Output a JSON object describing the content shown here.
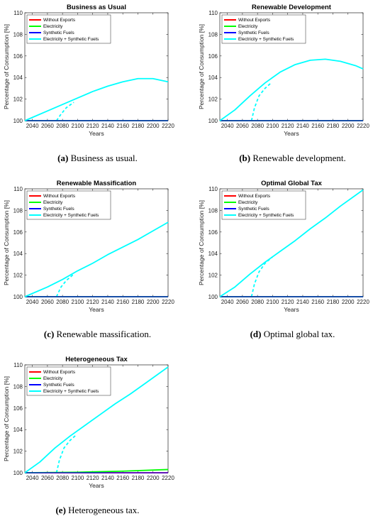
{
  "series_styles": {
    "Without Exports": "#ff0000",
    "Electricity": "#00ff00",
    "Synthetic Fuels": "#0000ff",
    "Electricity + Synthetic Fuels": "#00ffff"
  },
  "captions": [
    {
      "letter": "(a)",
      "text": " Business as usual."
    },
    {
      "letter": "(b)",
      "text": " Renewable development."
    },
    {
      "letter": "(c)",
      "text": " Renewable massification."
    },
    {
      "letter": "(d)",
      "text": " Optimal global tax."
    },
    {
      "letter": "(e)",
      "text": " Heterogeneous tax."
    }
  ],
  "chart_data": [
    {
      "type": "line",
      "title": "Business as Usual",
      "xlabel": "Years",
      "ylabel": "Percentage of Consumption [%]",
      "xlim": [
        2030,
        2220
      ],
      "ylim": [
        100,
        110
      ],
      "xticks": [
        2040,
        2060,
        2080,
        2100,
        2120,
        2140,
        2160,
        2180,
        2200,
        2220
      ],
      "yticks": [
        100,
        102,
        104,
        106,
        108,
        110
      ],
      "legend_position": "top-left",
      "series": [
        {
          "name": "Without Exports",
          "x": [
            2030,
            2220
          ],
          "y": [
            100,
            100
          ]
        },
        {
          "name": "Electricity",
          "x": [
            2030,
            2220
          ],
          "y": [
            100,
            100
          ]
        },
        {
          "name": "Synthetic Fuels",
          "x": [
            2030,
            2220
          ],
          "y": [
            100,
            100
          ]
        },
        {
          "name": "Electricity + Synthetic Fuels",
          "x": [
            2030,
            2060,
            2080,
            2100,
            2120,
            2140,
            2160,
            2180,
            2200,
            2220
          ],
          "y": [
            100.0,
            100.9,
            101.5,
            102.1,
            102.7,
            103.2,
            103.6,
            103.9,
            103.9,
            103.6
          ]
        }
      ],
      "dashed_segments": [
        {
          "x": [
            2030,
            2072
          ],
          "y": [
            100,
            100
          ]
        },
        {
          "x": [
            2072,
            2078,
            2085,
            2095
          ],
          "y": [
            100,
            100.6,
            101.2,
            101.7
          ]
        }
      ]
    },
    {
      "type": "line",
      "title": "Renewable Development",
      "xlabel": "Years",
      "ylabel": "Percentage of Consumption [%]",
      "xlim": [
        2030,
        2220
      ],
      "ylim": [
        100,
        110
      ],
      "xticks": [
        2040,
        2060,
        2080,
        2100,
        2120,
        2140,
        2160,
        2180,
        2200,
        2220
      ],
      "yticks": [
        100,
        102,
        104,
        106,
        108,
        110
      ],
      "legend_position": "top-left",
      "series": [
        {
          "name": "Without Exports",
          "x": [
            2030,
            2220
          ],
          "y": [
            100,
            100
          ]
        },
        {
          "name": "Electricity",
          "x": [
            2030,
            2220
          ],
          "y": [
            100,
            100
          ]
        },
        {
          "name": "Synthetic Fuels",
          "x": [
            2030,
            2220
          ],
          "y": [
            100,
            100
          ]
        },
        {
          "name": "Electricity + Synthetic Fuels",
          "x": [
            2030,
            2050,
            2070,
            2090,
            2110,
            2130,
            2150,
            2170,
            2190,
            2210,
            2220
          ],
          "y": [
            100.0,
            101.0,
            102.3,
            103.5,
            104.5,
            105.2,
            105.6,
            105.7,
            105.5,
            105.1,
            104.8
          ]
        }
      ],
      "dashed_segments": [
        {
          "x": [
            2030,
            2072
          ],
          "y": [
            100,
            100
          ]
        },
        {
          "x": [
            2072,
            2076,
            2082,
            2090,
            2098
          ],
          "y": [
            100,
            101.2,
            102.3,
            103.0,
            103.5
          ]
        }
      ]
    },
    {
      "type": "line",
      "title": "Renewable Massification",
      "xlabel": "Years",
      "ylabel": "Percentage of Consumption [%]",
      "xlim": [
        2030,
        2220
      ],
      "ylim": [
        100,
        110
      ],
      "xticks": [
        2040,
        2060,
        2080,
        2100,
        2120,
        2140,
        2160,
        2180,
        2200,
        2220
      ],
      "yticks": [
        100,
        102,
        104,
        106,
        108,
        110
      ],
      "legend_position": "top-left",
      "series": [
        {
          "name": "Without Exports",
          "x": [
            2030,
            2220
          ],
          "y": [
            100,
            100
          ]
        },
        {
          "name": "Electricity",
          "x": [
            2030,
            2220
          ],
          "y": [
            100,
            100
          ]
        },
        {
          "name": "Synthetic Fuels",
          "x": [
            2030,
            2220
          ],
          "y": [
            100,
            100
          ]
        },
        {
          "name": "Electricity + Synthetic Fuels",
          "x": [
            2030,
            2060,
            2080,
            2100,
            2120,
            2140,
            2160,
            2180,
            2200,
            2220
          ],
          "y": [
            100.0,
            100.9,
            101.6,
            102.4,
            103.1,
            103.9,
            104.6,
            105.3,
            106.1,
            106.9
          ]
        }
      ],
      "dashed_segments": [
        {
          "x": [
            2030,
            2072
          ],
          "y": [
            100,
            100
          ]
        },
        {
          "x": [
            2072,
            2078,
            2085,
            2095
          ],
          "y": [
            100,
            100.9,
            101.5,
            102.1
          ]
        }
      ]
    },
    {
      "type": "line",
      "title": "Optimal Global Tax",
      "xlabel": "Years",
      "ylabel": "Percentage of Consumption [%]",
      "xlim": [
        2030,
        2220
      ],
      "ylim": [
        100,
        110
      ],
      "xticks": [
        2040,
        2060,
        2080,
        2100,
        2120,
        2140,
        2160,
        2180,
        2200,
        2220
      ],
      "yticks": [
        100,
        102,
        104,
        106,
        108,
        110
      ],
      "legend_position": "top-left",
      "series": [
        {
          "name": "Without Exports",
          "x": [
            2030,
            2220
          ],
          "y": [
            100,
            100
          ]
        },
        {
          "name": "Electricity",
          "x": [
            2030,
            2220
          ],
          "y": [
            100,
            100
          ]
        },
        {
          "name": "Synthetic Fuels",
          "x": [
            2030,
            2220
          ],
          "y": [
            100,
            100
          ]
        },
        {
          "name": "Electricity + Synthetic Fuels",
          "x": [
            2030,
            2050,
            2070,
            2090,
            2110,
            2130,
            2150,
            2170,
            2190,
            2210,
            2220
          ],
          "y": [
            100.0,
            100.9,
            102.1,
            103.2,
            104.2,
            105.2,
            106.3,
            107.3,
            108.4,
            109.4,
            109.9
          ]
        }
      ],
      "dashed_segments": [
        {
          "x": [
            2030,
            2072
          ],
          "y": [
            100,
            100
          ]
        },
        {
          "x": [
            2072,
            2076,
            2082,
            2090,
            2100
          ],
          "y": [
            100,
            101.2,
            102.3,
            103.1,
            103.7
          ]
        }
      ]
    },
    {
      "type": "line",
      "title": "Heterogeneous Tax",
      "xlabel": "Years",
      "ylabel": "Percentage of Consumption [%]",
      "xlim": [
        2030,
        2220
      ],
      "ylim": [
        100,
        110
      ],
      "xticks": [
        2040,
        2060,
        2080,
        2100,
        2120,
        2140,
        2160,
        2180,
        2200,
        2220
      ],
      "yticks": [
        100,
        102,
        104,
        106,
        108,
        110
      ],
      "legend_position": "top-left",
      "series": [
        {
          "name": "Without Exports",
          "x": [
            2030,
            2220
          ],
          "y": [
            100,
            100
          ]
        },
        {
          "name": "Electricity",
          "x": [
            2030,
            2100,
            2160,
            2220
          ],
          "y": [
            100.0,
            100.05,
            100.15,
            100.3
          ]
        },
        {
          "name": "Synthetic Fuels",
          "x": [
            2030,
            2220
          ],
          "y": [
            100,
            100
          ]
        },
        {
          "name": "Electricity + Synthetic Fuels",
          "x": [
            2030,
            2050,
            2070,
            2090,
            2110,
            2130,
            2150,
            2170,
            2190,
            2210,
            2220
          ],
          "y": [
            100.0,
            101.0,
            102.3,
            103.4,
            104.4,
            105.4,
            106.4,
            107.3,
            108.3,
            109.3,
            109.8
          ]
        }
      ],
      "dashed_segments": [
        {
          "x": [
            2030,
            2072
          ],
          "y": [
            100,
            100
          ]
        },
        {
          "x": [
            2072,
            2076,
            2082,
            2090,
            2098
          ],
          "y": [
            100,
            101.2,
            102.3,
            103.0,
            103.5
          ]
        }
      ]
    }
  ]
}
